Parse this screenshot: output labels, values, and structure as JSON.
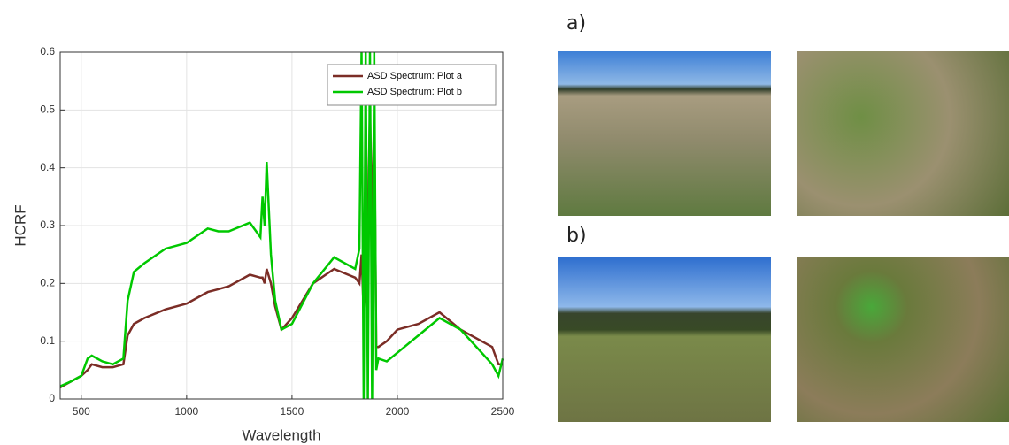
{
  "chart_data": {
    "type": "line",
    "x_label": "Wavelength",
    "y_label": "HCRF",
    "x": [
      400,
      450,
      500,
      530,
      550,
      600,
      650,
      700,
      720,
      750,
      800,
      900,
      1000,
      1100,
      1150,
      1200,
      1300,
      1350,
      1360,
      1370,
      1380,
      1400,
      1420,
      1450,
      1500,
      1600,
      1700,
      1800,
      1820,
      1830,
      1840,
      1850,
      1860,
      1870,
      1880,
      1890,
      1900,
      1910,
      1950,
      2000,
      2100,
      2200,
      2300,
      2400,
      2450,
      2480,
      2500
    ],
    "series": [
      {
        "name": "ASD Spectrum: Plot a",
        "color": "#7b2d26",
        "values": [
          0.02,
          0.03,
          0.04,
          0.05,
          0.06,
          0.055,
          0.055,
          0.06,
          0.11,
          0.13,
          0.14,
          0.155,
          0.165,
          0.185,
          0.19,
          0.195,
          0.215,
          0.21,
          0.21,
          0.2,
          0.225,
          0.2,
          0.16,
          0.12,
          0.14,
          0.2,
          0.225,
          0.21,
          0.2,
          0.25,
          0.15,
          0.2,
          0.3,
          0.5,
          0.3,
          0.5,
          0.09,
          0.09,
          0.1,
          0.12,
          0.13,
          0.15,
          0.12,
          0.1,
          0.09,
          0.06,
          0.06
        ]
      },
      {
        "name": "ASD Spectrum: Plot b",
        "color": "#00c800",
        "values": [
          0.022,
          0.03,
          0.04,
          0.07,
          0.075,
          0.065,
          0.06,
          0.07,
          0.17,
          0.22,
          0.235,
          0.26,
          0.27,
          0.295,
          0.29,
          0.29,
          0.305,
          0.28,
          0.35,
          0.3,
          0.41,
          0.25,
          0.17,
          0.12,
          0.13,
          0.2,
          0.245,
          0.225,
          0.26,
          0.6,
          0,
          0.6,
          0,
          0.6,
          0,
          0.6,
          0.05,
          0.07,
          0.065,
          0.08,
          0.11,
          0.14,
          0.12,
          0.08,
          0.06,
          0.04,
          0.07
        ]
      }
    ],
    "xlim": [
      400,
      2500
    ],
    "xticks": [
      500,
      1000,
      1500,
      2000,
      2500
    ],
    "ylim": [
      0,
      0.6
    ],
    "yticks": [
      0,
      0.1,
      0.2,
      0.3,
      0.4,
      0.5,
      0.6
    ],
    "grid": true,
    "legend": "top-right"
  },
  "panels": [
    {
      "label": "a)"
    },
    {
      "label": "b)"
    }
  ]
}
